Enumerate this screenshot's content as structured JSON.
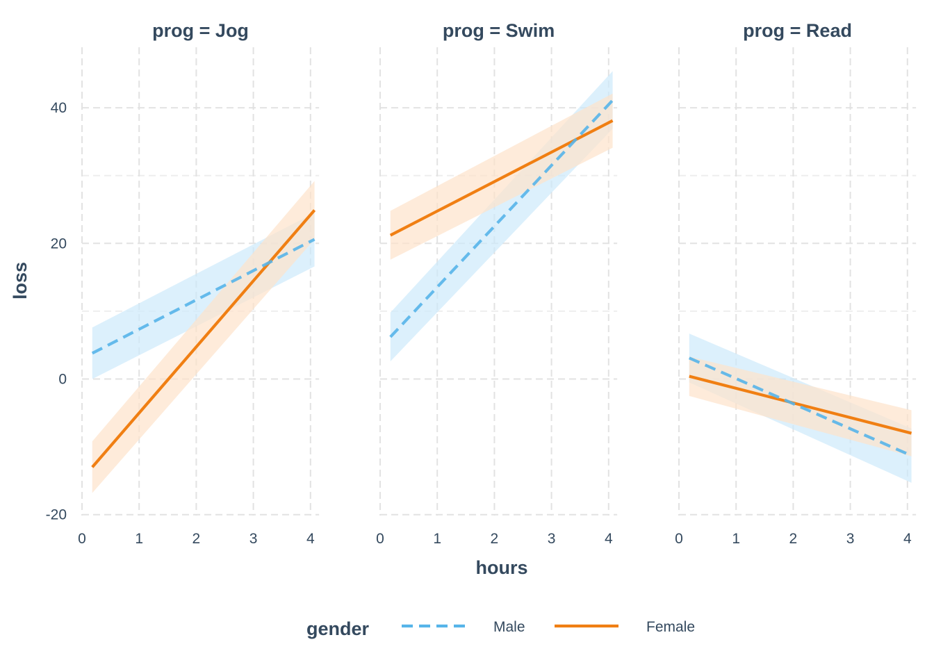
{
  "chart_data": {
    "type": "line",
    "facet_variable": "prog",
    "xlabel": "hours",
    "ylabel": "loss",
    "xlim": [
      0,
      4.15
    ],
    "ylim": [
      -20,
      48
    ],
    "x_ticks": [
      0,
      1,
      2,
      3,
      4
    ],
    "y_ticks": [
      -20,
      0,
      20,
      40
    ],
    "grid": true,
    "legend": {
      "title": "gender",
      "position": "bottom",
      "entries": [
        "Male",
        "Female"
      ]
    },
    "colors": {
      "Male": "#56b4e9",
      "Female": "#f07f13",
      "Male_band": "#cde9fb",
      "Female_band": "#fde2cb",
      "text": "#34495e",
      "grid": "#e2e2e2"
    },
    "panels": [
      {
        "title": "prog = Jog",
        "series": [
          {
            "name": "Male",
            "style": "dashed",
            "x": [
              0.18,
              4.07
            ],
            "y": [
              3.8,
              20.6
            ],
            "ci_lower": [
              0.0,
              16.6
            ],
            "ci_upper": [
              7.6,
              24.5
            ]
          },
          {
            "name": "Female",
            "style": "solid",
            "x": [
              0.18,
              4.07
            ],
            "y": [
              -13.0,
              24.9
            ],
            "ci_lower": [
              -16.8,
              20.6
            ],
            "ci_upper": [
              -9.2,
              29.2
            ]
          }
        ]
      },
      {
        "title": "prog = Swim",
        "series": [
          {
            "name": "Male",
            "style": "dashed",
            "x": [
              0.18,
              4.07
            ],
            "y": [
              6.2,
              41.1
            ],
            "ci_lower": [
              2.6,
              36.9
            ],
            "ci_upper": [
              9.8,
              45.4
            ]
          },
          {
            "name": "Female",
            "style": "solid",
            "x": [
              0.18,
              4.07
            ],
            "y": [
              21.2,
              38.1
            ],
            "ci_lower": [
              17.6,
              34.1
            ],
            "ci_upper": [
              24.8,
              42.1
            ]
          }
        ]
      },
      {
        "title": "prog = Read",
        "series": [
          {
            "name": "Male",
            "style": "dashed",
            "x": [
              0.18,
              4.07
            ],
            "y": [
              3.1,
              -11.3
            ],
            "ci_lower": [
              -0.5,
              -15.3
            ],
            "ci_upper": [
              6.7,
              -7.3
            ]
          },
          {
            "name": "Female",
            "style": "solid",
            "x": [
              0.18,
              4.07
            ],
            "y": [
              0.4,
              -8.0
            ],
            "ci_lower": [
              -2.5,
              -11.4
            ],
            "ci_upper": [
              3.3,
              -4.6
            ]
          }
        ]
      }
    ]
  }
}
